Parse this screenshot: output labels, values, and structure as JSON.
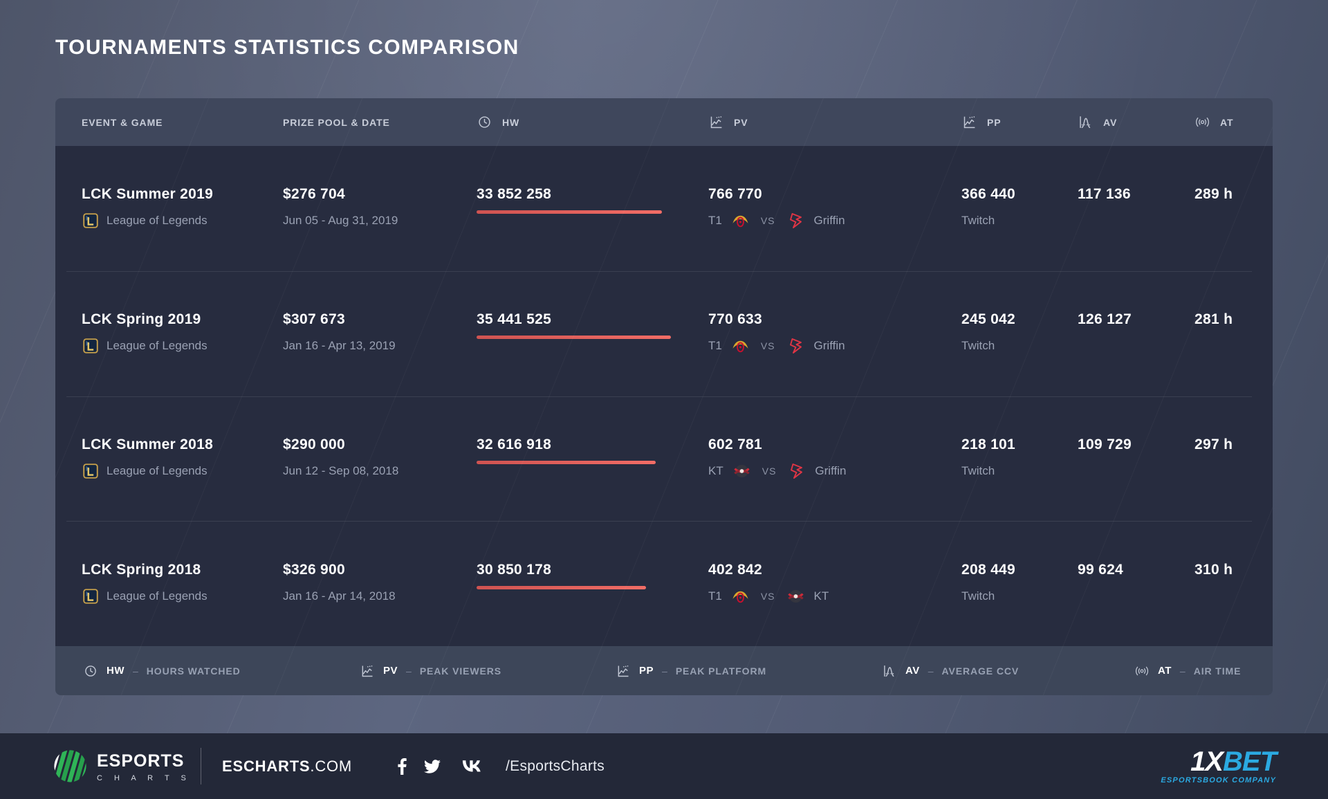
{
  "page": {
    "title": "TOURNAMENTS STATISTICS COMPARISON"
  },
  "colors": {
    "accent_red": "#e4605b",
    "sponsor_blue": "#2ba9e1",
    "brand_green": "#2fb457",
    "card_body": "#272c3f",
    "card_header": "#3f475c",
    "footer_bg": "#232838"
  },
  "table": {
    "columns": [
      {
        "key": "event",
        "label": "EVENT & GAME",
        "icon": null
      },
      {
        "key": "prize",
        "label": "PRIZE POOL & DATE",
        "icon": null
      },
      {
        "key": "hw",
        "label": "HW",
        "icon": "clock-icon"
      },
      {
        "key": "pv",
        "label": "PV",
        "icon": "line-chart-icon"
      },
      {
        "key": "pp",
        "label": "PP",
        "icon": "line-chart-icon"
      },
      {
        "key": "av",
        "label": "AV",
        "icon": "bell-curve-icon"
      },
      {
        "key": "at",
        "label": "AT",
        "icon": "broadcast-icon"
      }
    ],
    "rows": [
      {
        "event": "LCK Summer 2019",
        "game": "League of Legends",
        "game_logo": "lol",
        "prize": "$276 704",
        "date": "Jun 05 - Aug 31, 2019",
        "hw": "33 852 258",
        "pv": "766 770",
        "team1": "T1",
        "team1_logo": "t1",
        "vs": "VS",
        "team2": "Griffin",
        "team2_logo": "griffin",
        "pp": "366 440",
        "platform": "Twitch",
        "av": "117 136",
        "at": "289 h"
      },
      {
        "event": "LCK Spring 2019",
        "game": "League of Legends",
        "game_logo": "lol",
        "prize": "$307 673",
        "date": "Jan 16 - Apr 13, 2019",
        "hw": "35 441 525",
        "pv": "770 633",
        "team1": "T1",
        "team1_logo": "t1",
        "vs": "VS",
        "team2": "Griffin",
        "team2_logo": "griffin",
        "pp": "245 042",
        "platform": "Twitch",
        "av": "126 127",
        "at": "281 h"
      },
      {
        "event": "LCK Summer 2018",
        "game": "League of Legends",
        "game_logo": "lol",
        "prize": "$290 000",
        "date": "Jun 12 - Sep 08, 2018",
        "hw": "32 616 918",
        "pv": "602 781",
        "team1": "KT",
        "team1_logo": "kt",
        "vs": "VS",
        "team2": "Griffin",
        "team2_logo": "griffin",
        "pp": "218 101",
        "platform": "Twitch",
        "av": "109 729",
        "at": "297 h"
      },
      {
        "event": "LCK Spring 2018",
        "game": "League of Legends",
        "game_logo": "lol",
        "prize": "$326 900",
        "date": "Jan 16 - Apr 14, 2018",
        "hw": "30 850 178",
        "pv": "402 842",
        "team1": "T1",
        "team1_logo": "t1",
        "vs": "VS",
        "team2": "KT",
        "team2_logo": "kt",
        "pp": "208 449",
        "platform": "Twitch",
        "av": "99 624",
        "at": "310 h"
      }
    ],
    "legend": [
      {
        "icon": "clock-icon",
        "code": "HW",
        "sep": "–",
        "label": "HOURS WATCHED"
      },
      {
        "icon": "line-chart-icon",
        "code": "PV",
        "sep": "–",
        "label": "PEAK VIEWERS"
      },
      {
        "icon": "line-chart-icon",
        "code": "PP",
        "sep": "–",
        "label": "PEAK PLATFORM"
      },
      {
        "icon": "bell-curve-icon",
        "code": "AV",
        "sep": "–",
        "label": "AVERAGE CCV"
      },
      {
        "icon": "broadcast-icon",
        "code": "AT",
        "sep": "–",
        "label": "AIR TIME"
      }
    ]
  },
  "footer": {
    "brand_name": "ESPORTS",
    "brand_sub": "C H A R T S",
    "site_bold": "ESCHARTS",
    "site_rest": ".COM",
    "social_handle": "/EsportsCharts",
    "social_icons": [
      "facebook-icon",
      "twitter-icon",
      "vk-icon"
    ],
    "sponsor_part1": "1X",
    "sponsor_part2": "BET",
    "sponsor_tagline": "ESPORTSBOOK COMPANY"
  }
}
